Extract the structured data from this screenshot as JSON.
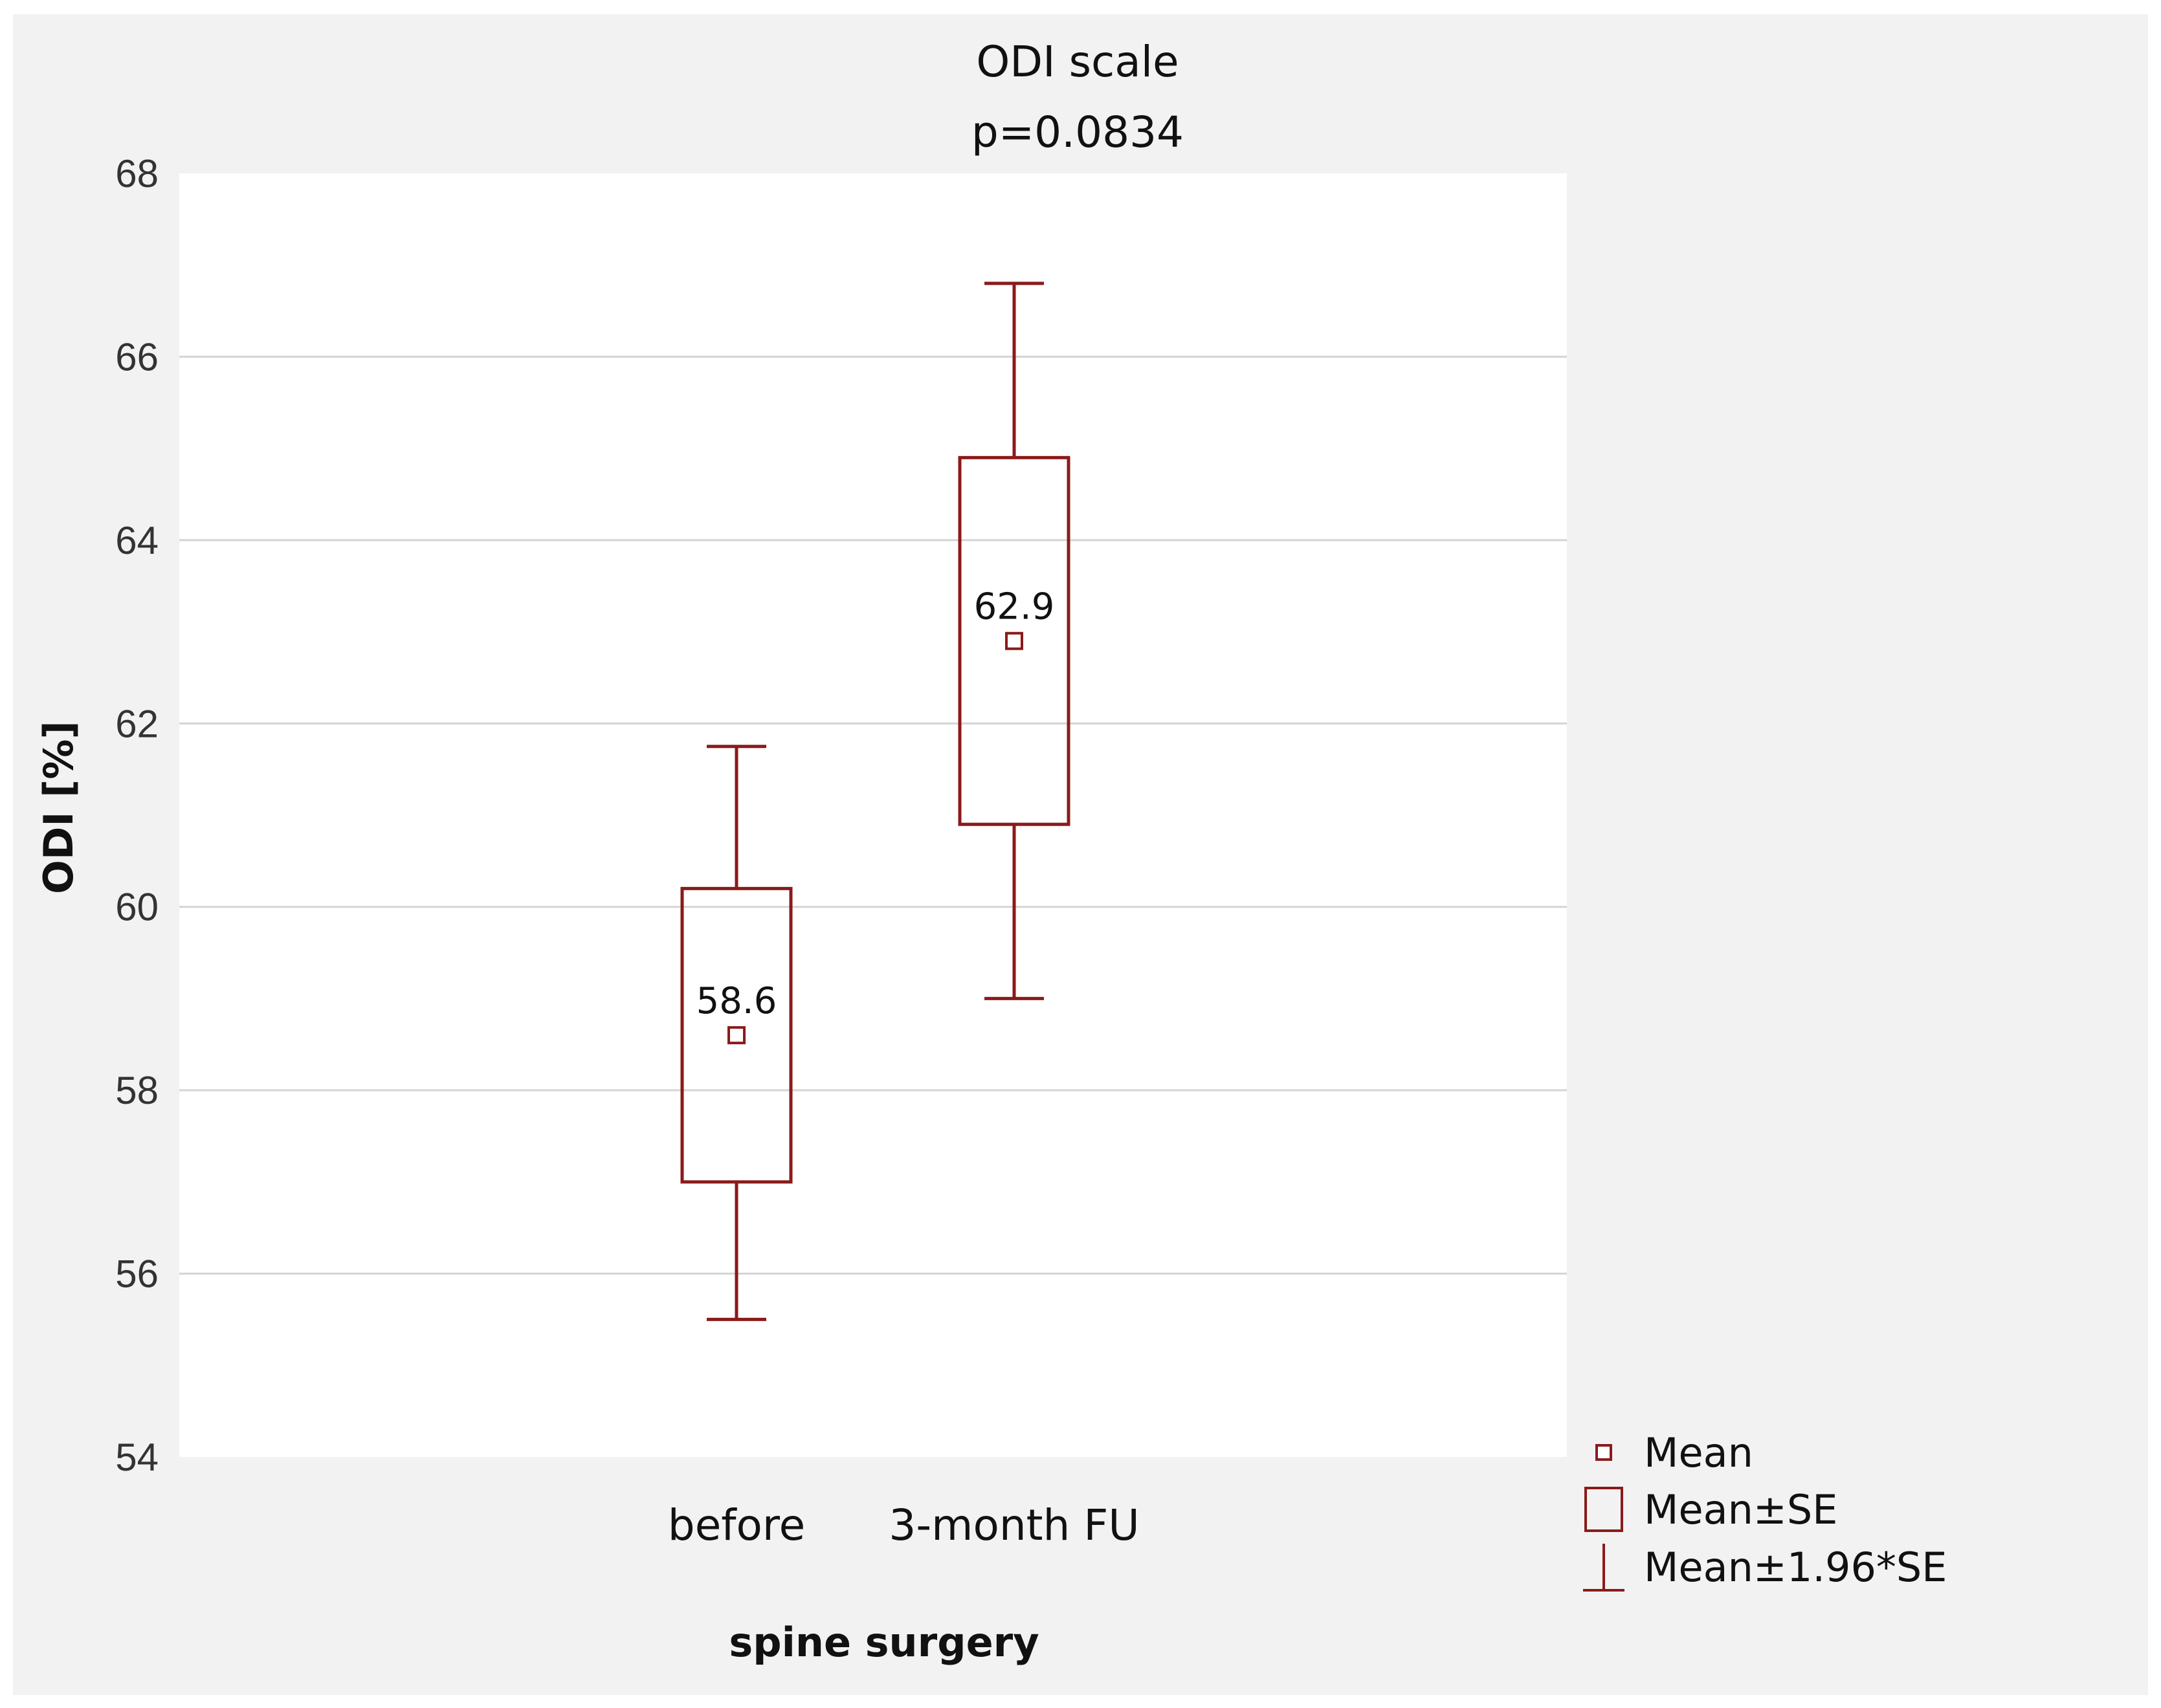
{
  "chart_data": {
    "type": "box",
    "title": "ODI scale",
    "subtitle": "p=0.0834",
    "xlabel": "spine surgery",
    "ylabel": "ODI [%]",
    "ylim": [
      54,
      68
    ],
    "yticks": [
      54,
      56,
      58,
      60,
      62,
      64,
      66,
      68
    ],
    "ytick_labels": [
      "54",
      "56",
      "58",
      "60",
      "62",
      "64",
      "66",
      "68"
    ],
    "grid": "horizontal",
    "legend_position": "bottom-right",
    "categories": [
      "before",
      "3-month FU"
    ],
    "groups": [
      {
        "category": "before",
        "mean": 58.6,
        "mean_label": "58.6",
        "se_low": 57.0,
        "se_high": 60.2,
        "ci_low": 55.5,
        "ci_high": 61.75
      },
      {
        "category": "3-month FU",
        "mean": 62.9,
        "mean_label": "62.9",
        "se_low": 60.9,
        "se_high": 64.9,
        "ci_low": 59.0,
        "ci_high": 66.8
      }
    ],
    "legend": [
      {
        "symbol": "mean-marker",
        "label": "Mean"
      },
      {
        "symbol": "se-box",
        "label": "Mean±SE"
      },
      {
        "symbol": "ci-whisker",
        "label": "Mean±1.96*SE"
      }
    ],
    "colors": {
      "series": "#8b1a1a",
      "grid": "#d4d4d4",
      "plot_background": "#ffffff",
      "background": "#f2f2f2"
    }
  }
}
